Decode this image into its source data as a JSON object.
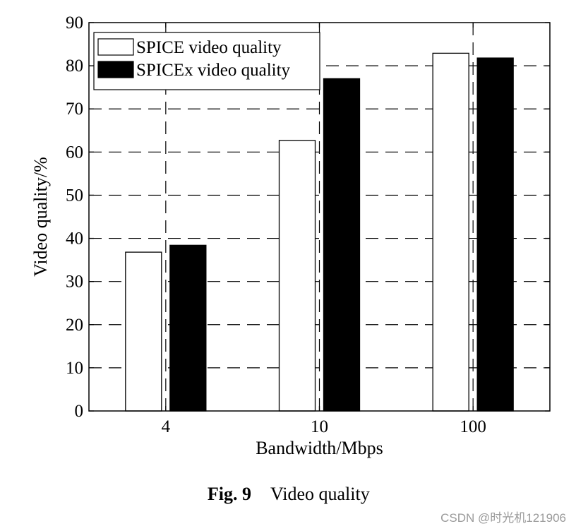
{
  "chart_data": {
    "type": "bar",
    "categories": [
      "4",
      "10",
      "100"
    ],
    "series": [
      {
        "name": "SPICE video quality",
        "values": [
          36.8,
          62.7,
          82.9
        ],
        "fill": "#ffffff"
      },
      {
        "name": "SPICEx video quality",
        "values": [
          38.4,
          77.0,
          81.8
        ],
        "fill": "#000000"
      }
    ],
    "xlabel": "Bandwidth/Mbps",
    "ylabel": "Video quality/%",
    "ylim": [
      0,
      90
    ],
    "yticks": [
      0,
      10,
      20,
      30,
      40,
      50,
      60,
      70,
      80,
      90
    ],
    "grid": true,
    "grid_style": "dashed",
    "legend_position": "top-left"
  },
  "caption": {
    "label": "Fig. 9",
    "text": "Video quality"
  },
  "watermark": "CSDN @时光机121906"
}
